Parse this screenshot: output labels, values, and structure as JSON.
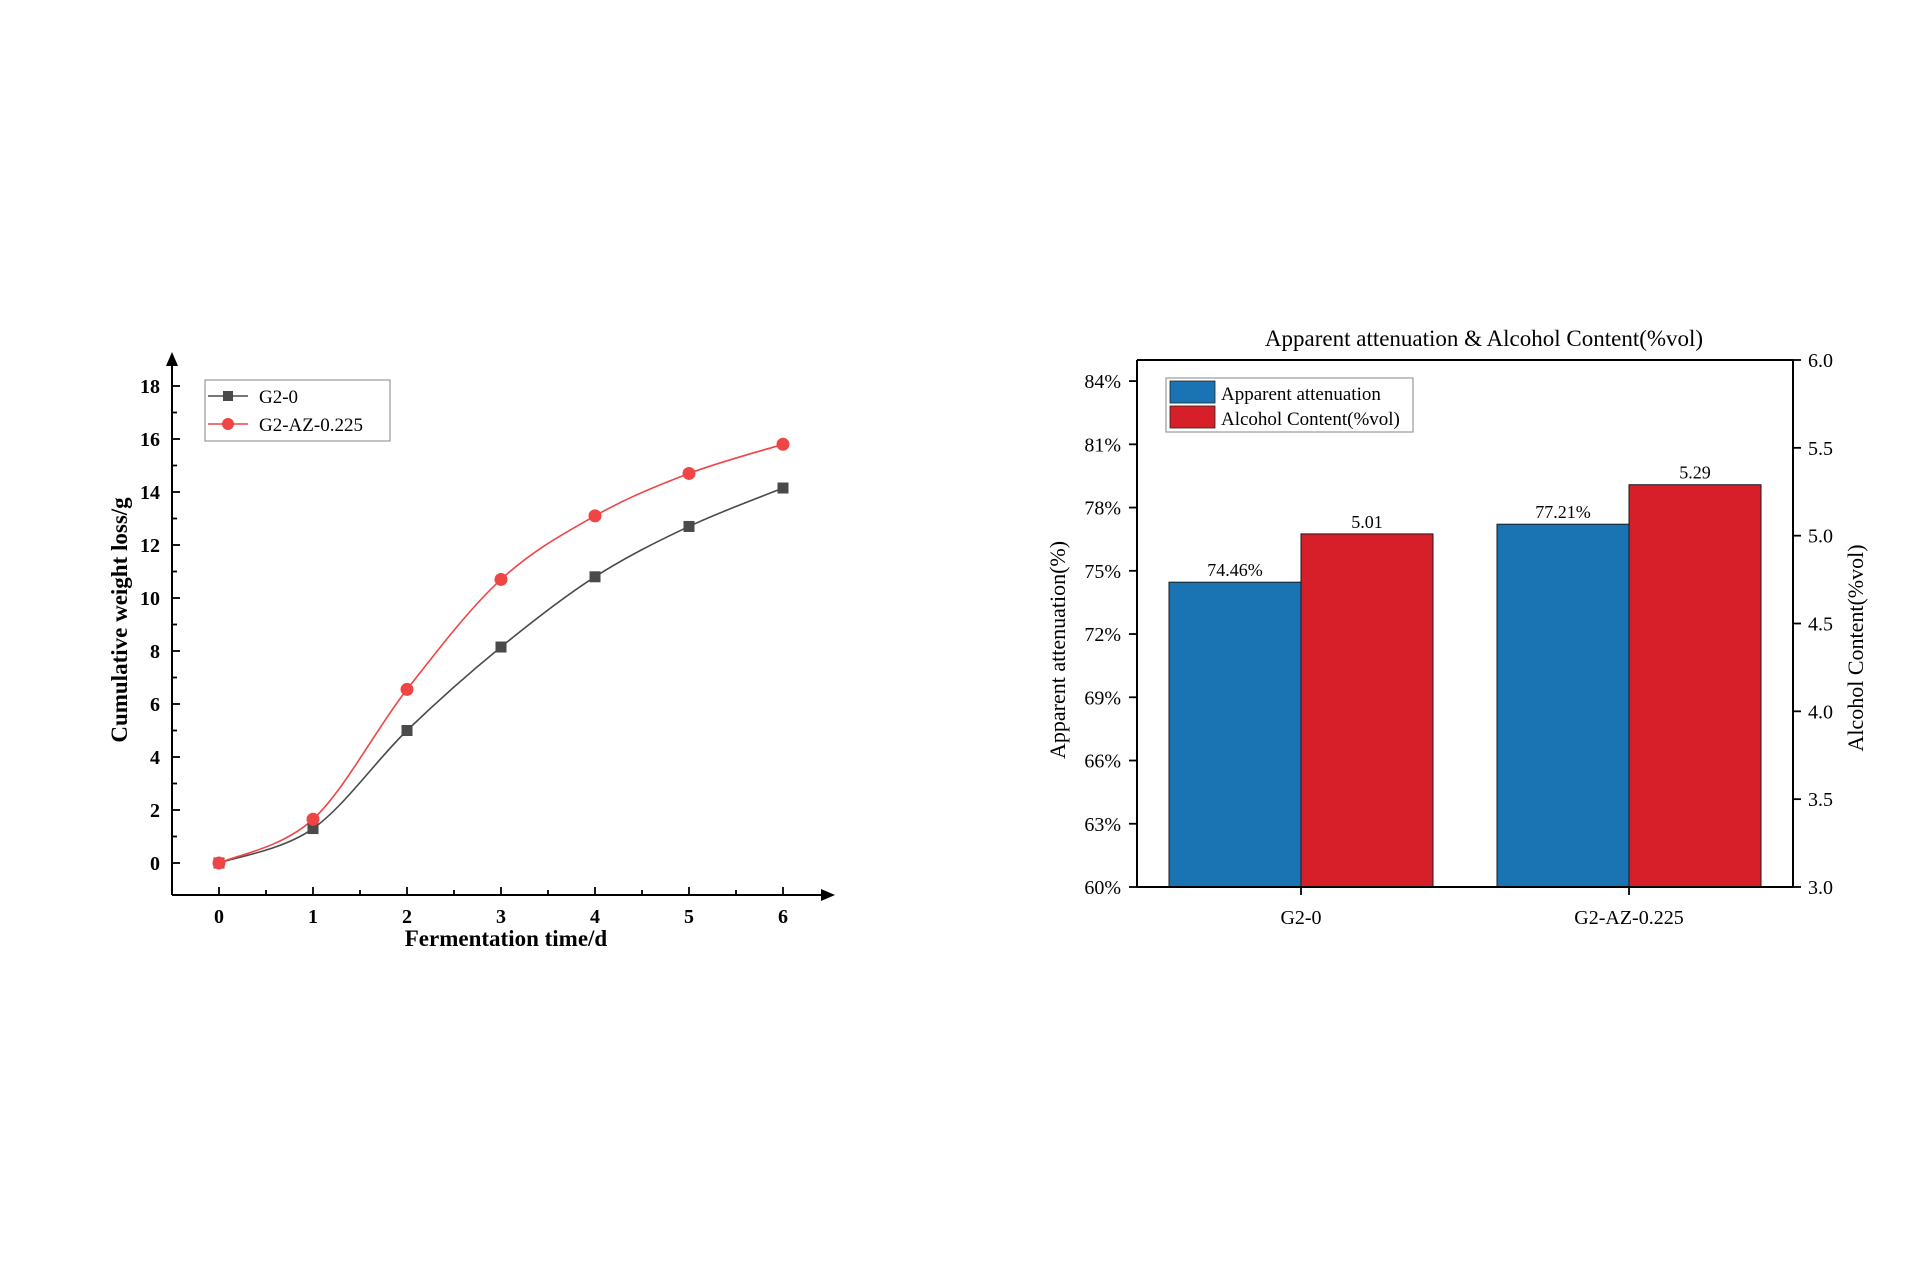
{
  "chart_data": [
    {
      "type": "line",
      "xlabel": "Fermentation time/d",
      "ylabel": "Cumulative weight loss/g",
      "x": [
        0,
        1,
        2,
        3,
        4,
        5,
        6
      ],
      "xlim": [
        -0.5,
        6.5
      ],
      "ylim": [
        -1,
        18.5
      ],
      "yticks": [
        0,
        2,
        4,
        6,
        8,
        10,
        12,
        14,
        16,
        18
      ],
      "series": [
        {
          "name": "G2-0",
          "color": "#4a4a4a",
          "marker": "square",
          "values": [
            0,
            1.3,
            5.0,
            8.15,
            10.8,
            12.7,
            14.15
          ]
        },
        {
          "name": "G2-AZ-0.225",
          "color": "#ef4545",
          "marker": "circle",
          "values": [
            0,
            1.65,
            6.55,
            10.7,
            13.1,
            14.7,
            15.8
          ]
        }
      ],
      "legend": "top-left"
    },
    {
      "type": "bar",
      "title": "Apparent attenuation & Alcohol Content(%vol)",
      "categories": [
        "G2-0",
        "G2-AZ-0.225"
      ],
      "ylabel": "Apparent attenuation(%)",
      "y2label": "Alcohol Content(%vol)",
      "ylim": [
        60,
        85
      ],
      "yticks": [
        "60%",
        "63%",
        "66%",
        "69%",
        "72%",
        "75%",
        "78%",
        "81%",
        "84%"
      ],
      "y2lim": [
        3.0,
        6.0
      ],
      "y2ticks": [
        "3.0",
        "3.5",
        "4.0",
        "4.5",
        "5.0",
        "5.5",
        "6.0"
      ],
      "series": [
        {
          "name": "Apparent attenuation",
          "color": "#1a73b3",
          "axis": "left",
          "values": [
            74.46,
            77.21
          ],
          "labels": [
            "74.46%",
            "77.21%"
          ]
        },
        {
          "name": "Alcohol Content(%vol)",
          "color": "#d71f2a",
          "axis": "right",
          "values": [
            5.01,
            5.29
          ],
          "labels": [
            "5.01",
            "5.29"
          ]
        }
      ],
      "legend": "top-left"
    }
  ]
}
